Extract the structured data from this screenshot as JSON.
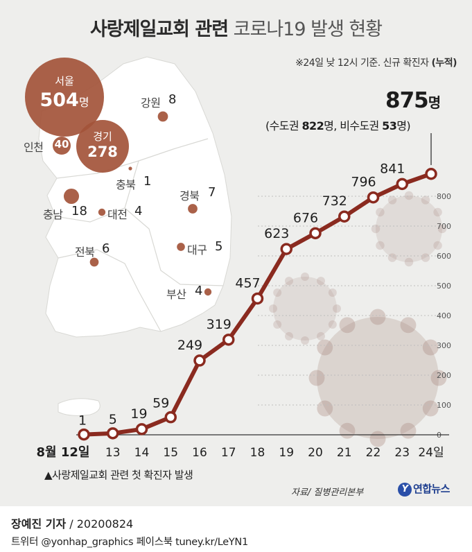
{
  "title_bold": "사랑제일교회 관련",
  "title_light": "코로나19 발생 현황",
  "note_prefix": "※24일 낮 12시 기준. 신규 확진자 ",
  "note_bold": "(누적)",
  "total": {
    "value": "875",
    "unit": "명"
  },
  "breakdown": {
    "open": "(수도권 ",
    "metro_value": "822",
    "mid": "명, 비수도권 ",
    "nonmetro_value": "53",
    "close": "명)"
  },
  "regions": [
    {
      "id": "seoul",
      "name": "서울",
      "count": "504",
      "unit": "명",
      "value": 504
    },
    {
      "id": "gyeonggi",
      "name": "경기",
      "count": "278",
      "value": 278
    },
    {
      "id": "incheon",
      "name": "인천",
      "count": "40",
      "value": 40
    },
    {
      "id": "gangwon",
      "name": "강원",
      "count": "8",
      "value": 8
    },
    {
      "id": "chungbuk",
      "name": "충북",
      "count": "1",
      "value": 1
    },
    {
      "id": "chungnam",
      "name": "충남",
      "count": "18",
      "value": 18
    },
    {
      "id": "daejeon",
      "name": "대전",
      "count": "4",
      "value": 4
    },
    {
      "id": "gyeongbuk",
      "name": "경북",
      "count": "7",
      "value": 7
    },
    {
      "id": "jeonbuk",
      "name": "전북",
      "count": "6",
      "value": 6
    },
    {
      "id": "daegu",
      "name": "대구",
      "count": "5",
      "value": 5
    },
    {
      "id": "busan",
      "name": "부산",
      "count": "4",
      "value": 4
    }
  ],
  "chart_data": {
    "type": "line",
    "title": "사랑제일교회 관련 코로나19 발생 현황",
    "x": [
      "8월 12일",
      "13",
      "14",
      "15",
      "16",
      "17",
      "18",
      "19",
      "20",
      "21",
      "22",
      "23",
      "24일"
    ],
    "series": [
      {
        "values": [
          1,
          5,
          19,
          59,
          249,
          319,
          457,
          623,
          676,
          732,
          796,
          841,
          875
        ]
      }
    ],
    "yticks": [
      0,
      100,
      200,
      300,
      400,
      500,
      600,
      700,
      800
    ],
    "ylim": [
      0,
      900
    ],
    "grid": true,
    "color": "#8a2a1f"
  },
  "footnote": "▲사랑제일교회 관련 첫 확진자 발생",
  "source": "자료/ 질병관리본부",
  "logo_mark": "Y",
  "logo": "연합뉴스",
  "reporter_name": "장예진 기자",
  "reporter_date": " / 20200824",
  "social": "트위터 @yonhap_graphics  페이스북 tuney.kr/LeYN1"
}
